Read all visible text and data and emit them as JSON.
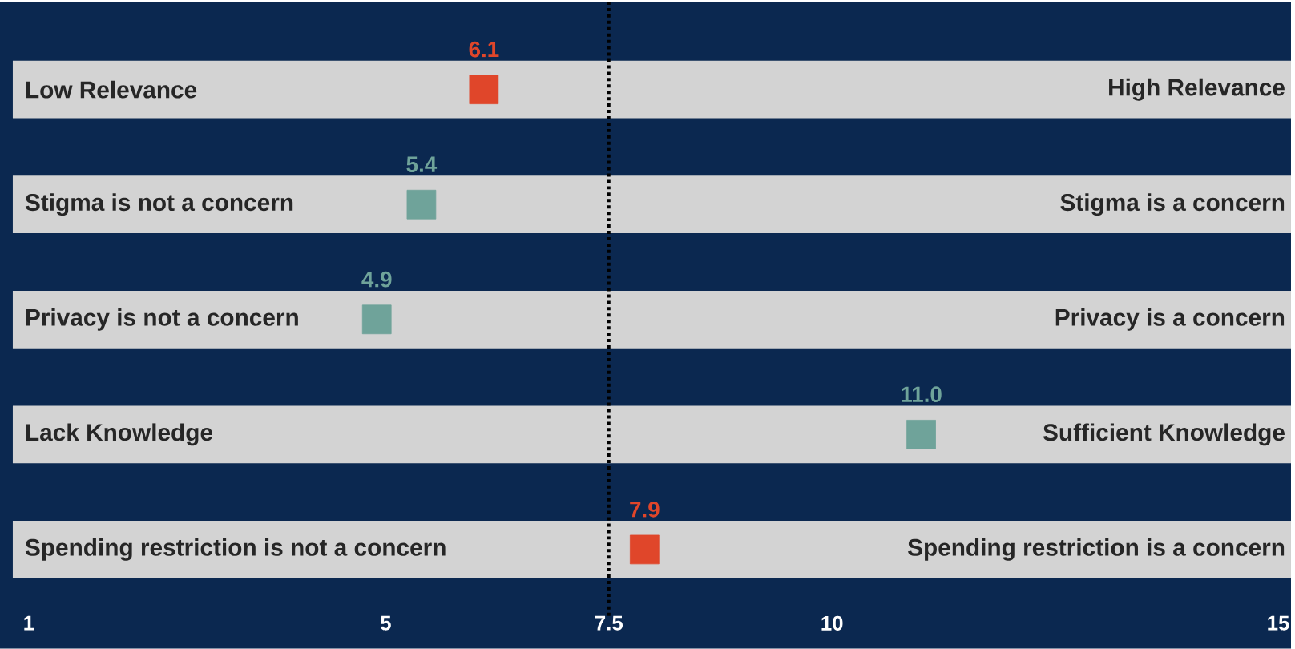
{
  "chart_data": {
    "type": "scatter",
    "orientation": "horizontal",
    "marker": "square",
    "categories": [
      "Low Relevance",
      "Stigma is not a concern",
      "Privacy is not a concern",
      "Lack Knowledge",
      "Spending restriction is not a concern"
    ],
    "annotations": [
      "High Relevance",
      "Stigma is a concern",
      "Privacy is a concern",
      "Sufficient Knowledge",
      "Spending restriction is a concern"
    ],
    "values": [
      6.1,
      5.4,
      4.9,
      11.0,
      7.9
    ],
    "colors": [
      "#e0462a",
      "#6fa39a",
      "#6fa39a",
      "#6fa39a",
      "#e0462a"
    ],
    "value_labels": [
      "6.1",
      "5.4",
      "4.9",
      "11.0",
      "7.9"
    ],
    "xlim": [
      1,
      15
    ],
    "xticks": [
      1,
      5,
      7.5,
      10,
      15
    ],
    "ref_lines": [
      {
        "axis": "x",
        "value": 7.5,
        "color": "#000000",
        "line_style": "dotted"
      }
    ]
  }
}
